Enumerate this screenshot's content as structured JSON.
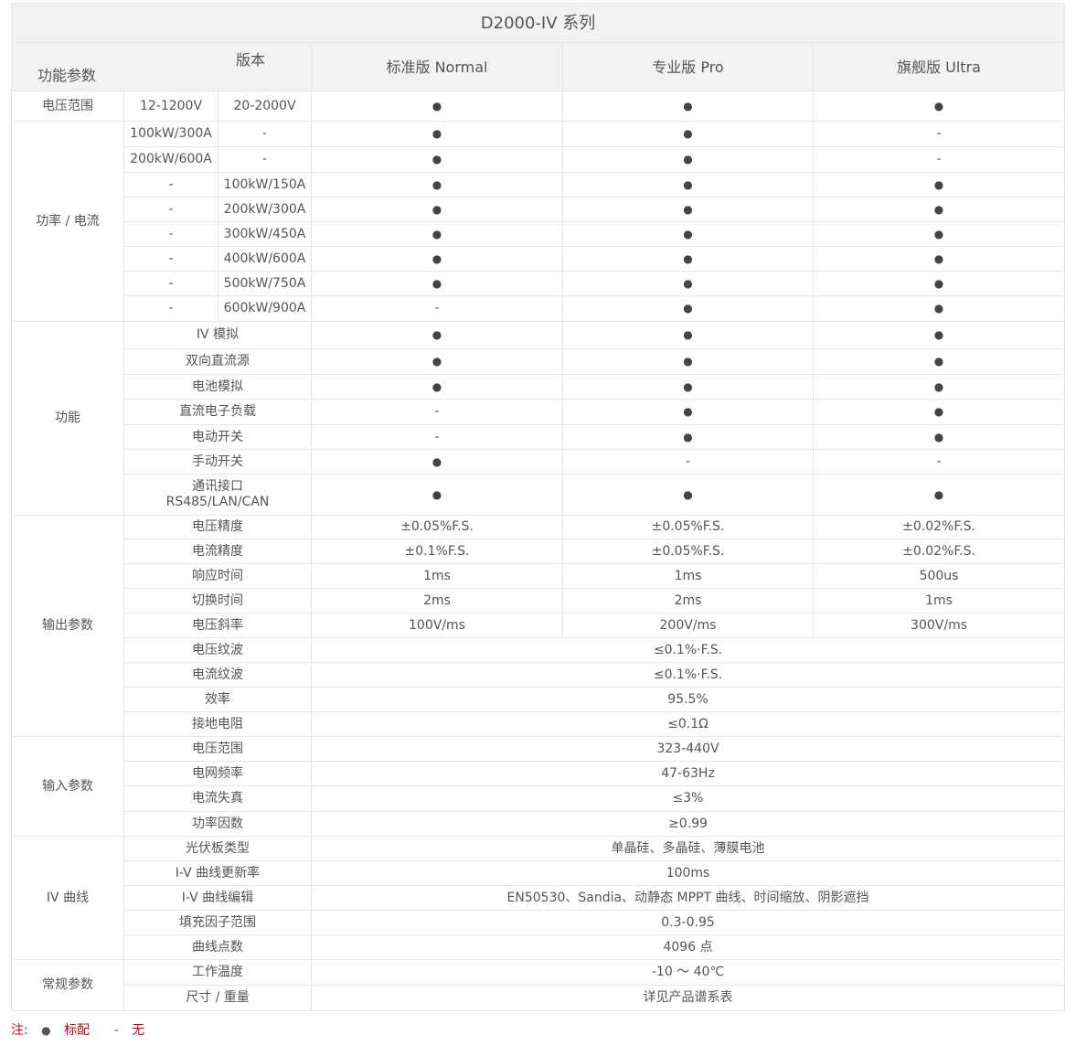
{
  "title": "D2000-IV 系列",
  "header": {
    "row_label": "功能参数",
    "col_label": "版本",
    "editions": [
      "标准版 Normal",
      "专业版 Pro",
      "旗舰版 Ultra"
    ]
  },
  "sections": [
    {
      "label": "电压范围",
      "rows": [
        {
          "p": [
            "12-1200V",
            "20-2000V"
          ],
          "v": [
            "●",
            "●",
            "●"
          ]
        }
      ]
    },
    {
      "label": "功率 / 电流",
      "rows": [
        {
          "p": [
            "100kW/300A",
            "-"
          ],
          "v": [
            "●",
            "●",
            "-"
          ]
        },
        {
          "p": [
            "200kW/600A",
            "-"
          ],
          "v": [
            "●",
            "●",
            "-"
          ]
        },
        {
          "p": [
            "-",
            "100kW/150A"
          ],
          "v": [
            "●",
            "●",
            "●"
          ]
        },
        {
          "p": [
            "-",
            "200kW/300A"
          ],
          "v": [
            "●",
            "●",
            "●"
          ]
        },
        {
          "p": [
            "-",
            "300kW/450A"
          ],
          "v": [
            "●",
            "●",
            "●"
          ]
        },
        {
          "p": [
            "-",
            "400kW/600A"
          ],
          "v": [
            "●",
            "●",
            "●"
          ]
        },
        {
          "p": [
            "-",
            "500kW/750A"
          ],
          "v": [
            "●",
            "●",
            "●"
          ]
        },
        {
          "p": [
            "-",
            "600kW/900A"
          ],
          "v": [
            "-",
            "●",
            "●"
          ]
        }
      ]
    },
    {
      "label": "功能",
      "rows": [
        {
          "p": "IV 模拟",
          "v": [
            "●",
            "●",
            "●"
          ]
        },
        {
          "p": "双向直流源",
          "v": [
            "●",
            "●",
            "●"
          ]
        },
        {
          "p": "电池模拟",
          "v": [
            "●",
            "●",
            "●"
          ]
        },
        {
          "p": "直流电子负载",
          "v": [
            "-",
            "●",
            "●"
          ]
        },
        {
          "p": "电动开关",
          "v": [
            "-",
            "●",
            "●"
          ]
        },
        {
          "p": "手动开关",
          "v": [
            "●",
            "-",
            "-"
          ]
        },
        {
          "p": "通讯接口\nRS485/LAN/CAN",
          "v": [
            "●",
            "●",
            "●"
          ]
        }
      ]
    },
    {
      "label": "输出参数",
      "rows": [
        {
          "p": "电压精度",
          "v": [
            "±0.05%F.S.",
            "±0.05%F.S.",
            "±0.02%F.S."
          ]
        },
        {
          "p": "电流精度",
          "v": [
            "±0.1%F.S.",
            "±0.05%F.S.",
            "±0.02%F.S."
          ]
        },
        {
          "p": "响应时间",
          "v": [
            "1ms",
            "1ms",
            "500us"
          ]
        },
        {
          "p": "切换时间",
          "v": [
            "2ms",
            "2ms",
            "1ms"
          ]
        },
        {
          "p": "电压斜率",
          "v": [
            "100V/ms",
            "200V/ms",
            "300V/ms"
          ]
        },
        {
          "p": "电压纹波",
          "v": "≤0.1%·F.S."
        },
        {
          "p": "电流纹波",
          "v": "≤0.1%·F.S."
        },
        {
          "p": "效率",
          "v": "95.5%"
        },
        {
          "p": "接地电阻",
          "v": "≤0.1Ω"
        }
      ]
    },
    {
      "label": "输入参数",
      "rows": [
        {
          "p": "电压范围",
          "v": "323-440V"
        },
        {
          "p": "电网频率",
          "v": "47-63Hz"
        },
        {
          "p": "电流失真",
          "v": "≤3%"
        },
        {
          "p": "功率因数",
          "v": "≥0.99"
        }
      ]
    },
    {
      "label": "IV 曲线",
      "rows": [
        {
          "p": "光伏板类型",
          "v": "单晶硅、多晶硅、薄膜电池"
        },
        {
          "p": "I-V 曲线更新率",
          "v": "100ms"
        },
        {
          "p": "I-V 曲线编辑",
          "v": "EN50530、Sandia、动静态 MPPT 曲线、时间缩放、阴影遮挡"
        },
        {
          "p": "填充因子范围",
          "v": "0.3-0.95"
        },
        {
          "p": "曲线点数",
          "v": "4096 点"
        }
      ]
    },
    {
      "label": "常规参数",
      "rows": [
        {
          "p": "工作温度",
          "v": "-10 ～ 40℃"
        },
        {
          "p": "尺寸 / 重量",
          "v": "详见产品谱系表"
        }
      ]
    }
  ],
  "note": {
    "prefix": "注:",
    "dot": "●",
    "dot_label": "标配",
    "dash": "-",
    "dash_label": "无"
  }
}
